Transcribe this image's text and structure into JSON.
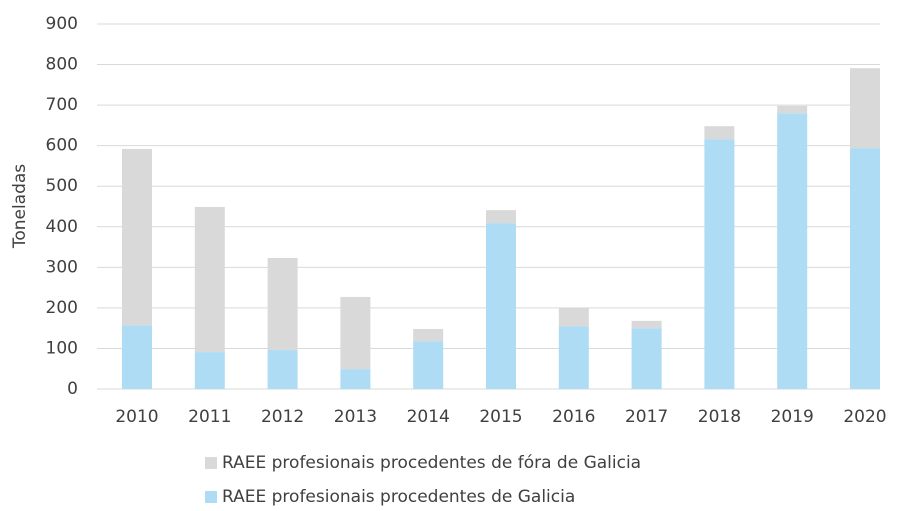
{
  "chart_data": {
    "type": "stacked_bar",
    "y_label": "Toneladas",
    "categories": [
      "2010",
      "2011",
      "2012",
      "2013",
      "2014",
      "2015",
      "2016",
      "2017",
      "2018",
      "2019",
      "2020"
    ],
    "series": [
      {
        "name": "RAEE profesionais procedentes de fóra de Galicia",
        "color": "#d9d9d9",
        "values": [
          435,
          358,
          227,
          178,
          30,
          32,
          45,
          18,
          32,
          18,
          197
        ]
      },
      {
        "name": "RAEE profesionais procedentes de Galicia",
        "color": "#aedcf5",
        "values": [
          157,
          91,
          96,
          49,
          118,
          409,
          155,
          150,
          616,
          680,
          594
        ]
      }
    ],
    "ylim": [
      0,
      900
    ],
    "yticks": [
      0,
      100,
      200,
      300,
      400,
      500,
      600,
      700,
      800,
      900
    ],
    "grid": true,
    "legend": "bottom"
  }
}
